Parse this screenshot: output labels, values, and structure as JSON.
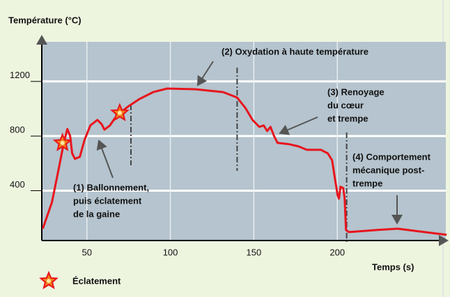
{
  "chart_data": {
    "type": "line",
    "y_label": "Température (°C)",
    "x_label": "Temps (s)",
    "xlim": [
      23,
      265
    ],
    "ylim": [
      35,
      1490
    ],
    "xticks": [
      50,
      100,
      150,
      200
    ],
    "yticks": [
      400,
      800,
      1200
    ],
    "grid": true,
    "series": [
      {
        "name": null,
        "color": "#e8141c",
        "x": [
          23.6,
          29.1,
          33.3,
          36.2,
          38.3,
          40,
          41.2,
          42.9,
          45.8,
          48.7,
          52.1,
          56.3,
          58.8,
          60.5,
          63.8,
          66.7,
          69.7,
          75.1,
          81.4,
          89.7,
          98.1,
          114.9,
          131.6,
          140,
          145,
          149.2,
          153.3,
          155.9,
          158,
          160,
          162.1,
          164.2,
          171.3,
          176.8,
          181.8,
          190.2,
          194.3,
          196.9,
          198.5,
          200.2,
          201,
          201.9,
          203.6,
          204.4,
          205.2,
          206.9,
          223.6,
          236.2,
          248.9,
          265.5
        ],
        "values": [
          122,
          316,
          571,
          750,
          852,
          801,
          673,
          633,
          648,
          776,
          878,
          918,
          888,
          847,
          878,
          929,
          969,
          1020,
          1071,
          1122,
          1148,
          1143,
          1122,
          1082,
          1005,
          918,
          867,
          878,
          837,
          867,
          801,
          750,
          740,
          724,
          699,
          699,
          673,
          622,
          495,
          367,
          342,
          429,
          418,
          342,
          112,
          97,
          112,
          122,
          102,
          77
        ]
      }
    ],
    "bursts": {
      "name": "Éclatement",
      "color": "#f07c1a",
      "x": [
        35.4,
        69.7
      ],
      "values": [
        750,
        969
      ]
    },
    "phase_markers": [
      76.4,
      140,
      205.6
    ],
    "annotations": [
      {
        "lines": [
          "(1) Ballonnement,",
          "puis éclatement",
          "de la gaine"
        ]
      },
      {
        "lines": [
          "(2) Oxydation à haute température"
        ]
      },
      {
        "lines": [
          "(3) Renoyage",
          "du cœur",
          "et trempe"
        ]
      },
      {
        "lines": [
          "(4) Comportement",
          "mécanique post-",
          "trempe"
        ]
      }
    ]
  }
}
